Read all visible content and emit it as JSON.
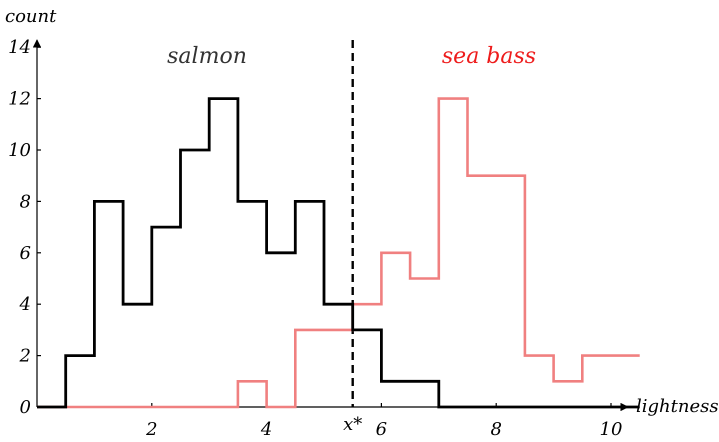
{
  "chart_data": {
    "type": "line",
    "title": "",
    "xlabel": "lightness",
    "ylabel": "count",
    "xlim": [
      0,
      10.5
    ],
    "ylim": [
      0,
      14
    ],
    "xticks": [
      "2",
      "4",
      "6",
      "8",
      "10"
    ],
    "yticks": [
      "0",
      "2",
      "4",
      "6",
      "8",
      "10",
      "12",
      "14"
    ],
    "grid": false,
    "threshold": {
      "x": 5.5,
      "label": "x*"
    },
    "series": [
      {
        "name": "salmon",
        "color": "#000000",
        "step": "post",
        "x": [
          0,
          0.5,
          1.0,
          1.5,
          2.0,
          2.5,
          3.0,
          3.5,
          4.0,
          4.5,
          5.0,
          5.5,
          6.0,
          6.5,
          7.0,
          7.5,
          8.0,
          8.5,
          9.0,
          9.5,
          10.0,
          10.5
        ],
        "values": [
          0,
          2,
          8,
          4,
          7,
          10,
          12,
          8,
          6,
          8,
          4,
          3,
          1,
          1,
          0,
          0,
          0,
          0,
          0,
          0,
          0,
          0
        ]
      },
      {
        "name": "sea bass",
        "color": "#f08080",
        "step": "post",
        "x": [
          0,
          0.5,
          1.0,
          1.5,
          2.0,
          2.5,
          3.0,
          3.5,
          4.0,
          4.5,
          5.0,
          5.5,
          6.0,
          6.5,
          7.0,
          7.5,
          8.0,
          8.5,
          9.0,
          9.5,
          10.0,
          10.5
        ],
        "values": [
          0,
          0,
          0,
          0,
          0,
          0,
          0,
          1,
          0,
          3,
          3,
          4,
          6,
          5,
          12,
          9,
          9,
          2,
          1,
          2,
          2,
          2
        ]
      }
    ]
  }
}
